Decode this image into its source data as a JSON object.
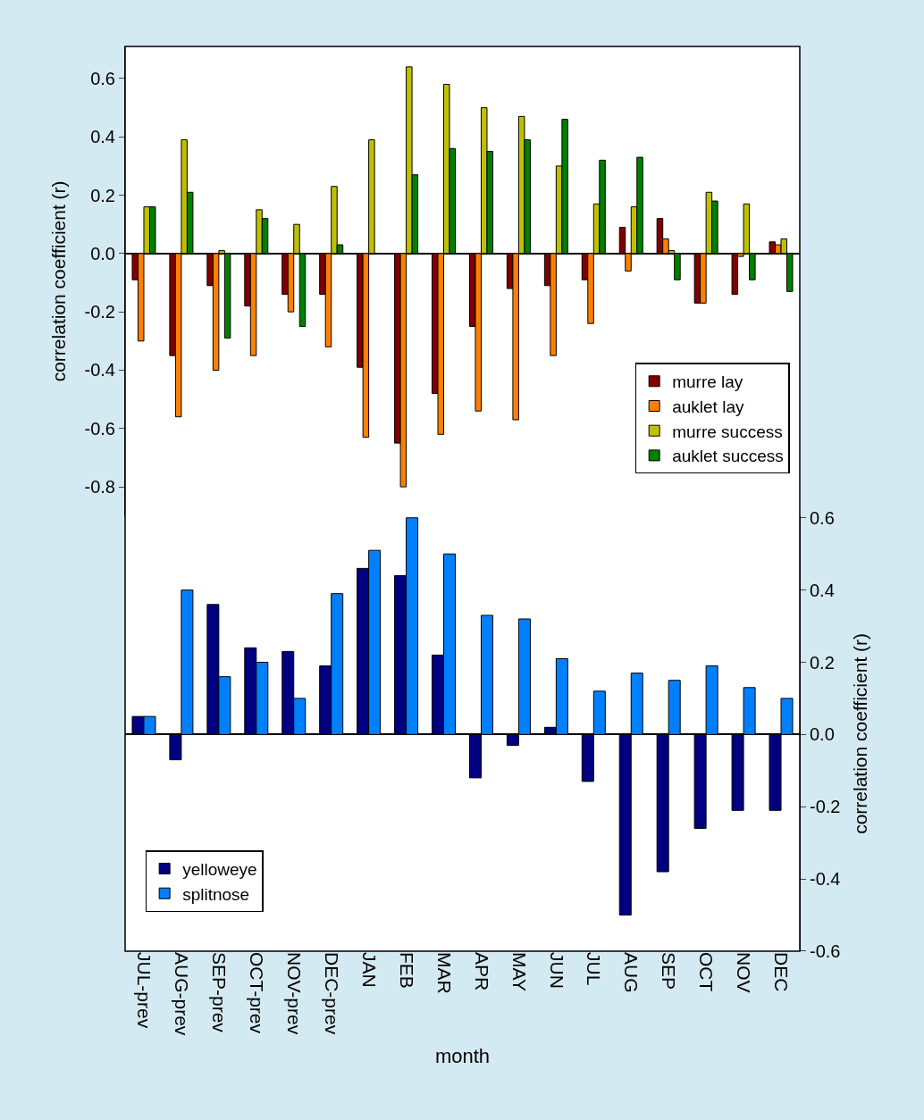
{
  "chart_data": [
    {
      "type": "bar",
      "ylabel": "correlation coefficient (r)",
      "tick_labels": "y",
      "legend": "bottom right",
      "categories": [
        "JUL-prev",
        "AUG-prev",
        "SEP-prev",
        "OCT-prev",
        "NOV-prev",
        "DEC-prev",
        "JAN",
        "FEB",
        "MAR",
        "APR",
        "MAY",
        "JUN",
        "JUL",
        "AUG",
        "SEP",
        "OCT",
        "NOV",
        "DEC"
      ],
      "ylim": [
        -0.9,
        0.71
      ],
      "yticks": [
        -0.8,
        -0.6,
        -0.4,
        -0.2,
        {
          "value": 0,
          "label": "0.0"
        },
        0.2,
        0.4,
        0.6
      ],
      "series": [
        {
          "name": "murre lay",
          "color": "#800000",
          "values": [
            -0.09,
            -0.35,
            -0.11,
            -0.18,
            -0.14,
            -0.14,
            -0.39,
            -0.65,
            -0.48,
            -0.25,
            -0.12,
            -0.11,
            -0.09,
            0.09,
            0.12,
            -0.17,
            -0.14,
            0.04
          ]
        },
        {
          "name": "auklet lay",
          "color": "#ff8000",
          "values": [
            -0.3,
            -0.56,
            -0.4,
            -0.35,
            -0.2,
            -0.32,
            -0.63,
            -0.8,
            -0.62,
            -0.54,
            -0.57,
            -0.35,
            -0.24,
            -0.06,
            0.05,
            -0.17,
            -0.01,
            0.03
          ]
        },
        {
          "name": "murre success",
          "color": "#c0c000",
          "values": [
            0.16,
            0.39,
            0.01,
            0.15,
            0.1,
            0.23,
            0.39,
            0.64,
            0.58,
            0.5,
            0.47,
            0.3,
            0.17,
            0.16,
            0.01,
            0.21,
            0.17,
            0.05
          ]
        },
        {
          "name": "auklet success",
          "color": "#008000",
          "values": [
            0.16,
            0.21,
            -0.29,
            0.12,
            -0.25,
            0.03,
            null,
            0.27,
            0.36,
            0.35,
            0.39,
            0.46,
            0.32,
            0.33,
            -0.09,
            0.18,
            -0.09,
            -0.13
          ]
        }
      ]
    },
    {
      "type": "bar",
      "xlabel": "month",
      "y2label": "correlation coefficient (r)",
      "legend": "bottom left",
      "categories": [
        "JUL-prev",
        "AUG-prev",
        "SEP-prev",
        "OCT-prev",
        "NOV-prev",
        "DEC-prev",
        "JAN",
        "FEB",
        "MAR",
        "APR",
        "MAY",
        "JUN",
        "JUL",
        "AUG",
        "SEP",
        "OCT",
        "NOV",
        "DEC"
      ],
      "y2lim": [
        -0.6,
        0.605
      ],
      "y2ticks": [
        -0.6,
        -0.4,
        -0.2,
        {
          "value": 0,
          "label": "0.0"
        },
        0.2,
        0.4,
        0.6
      ],
      "series": [
        {
          "name": "yelloweye",
          "color": "#000080",
          "axis": "y2",
          "values": [
            0.05,
            -0.07,
            0.36,
            0.24,
            0.23,
            0.19,
            0.46,
            0.44,
            0.22,
            -0.12,
            -0.03,
            0.02,
            -0.13,
            -0.5,
            -0.38,
            -0.26,
            -0.21,
            -0.21
          ]
        },
        {
          "name": "splitnose",
          "color": "#0080ff",
          "axis": "y2",
          "values": [
            0.05,
            0.4,
            0.16,
            0.2,
            0.1,
            0.39,
            0.51,
            0.6,
            0.5,
            0.33,
            0.32,
            0.21,
            0.12,
            0.17,
            0.15,
            0.19,
            0.13,
            0.1
          ]
        }
      ]
    }
  ]
}
